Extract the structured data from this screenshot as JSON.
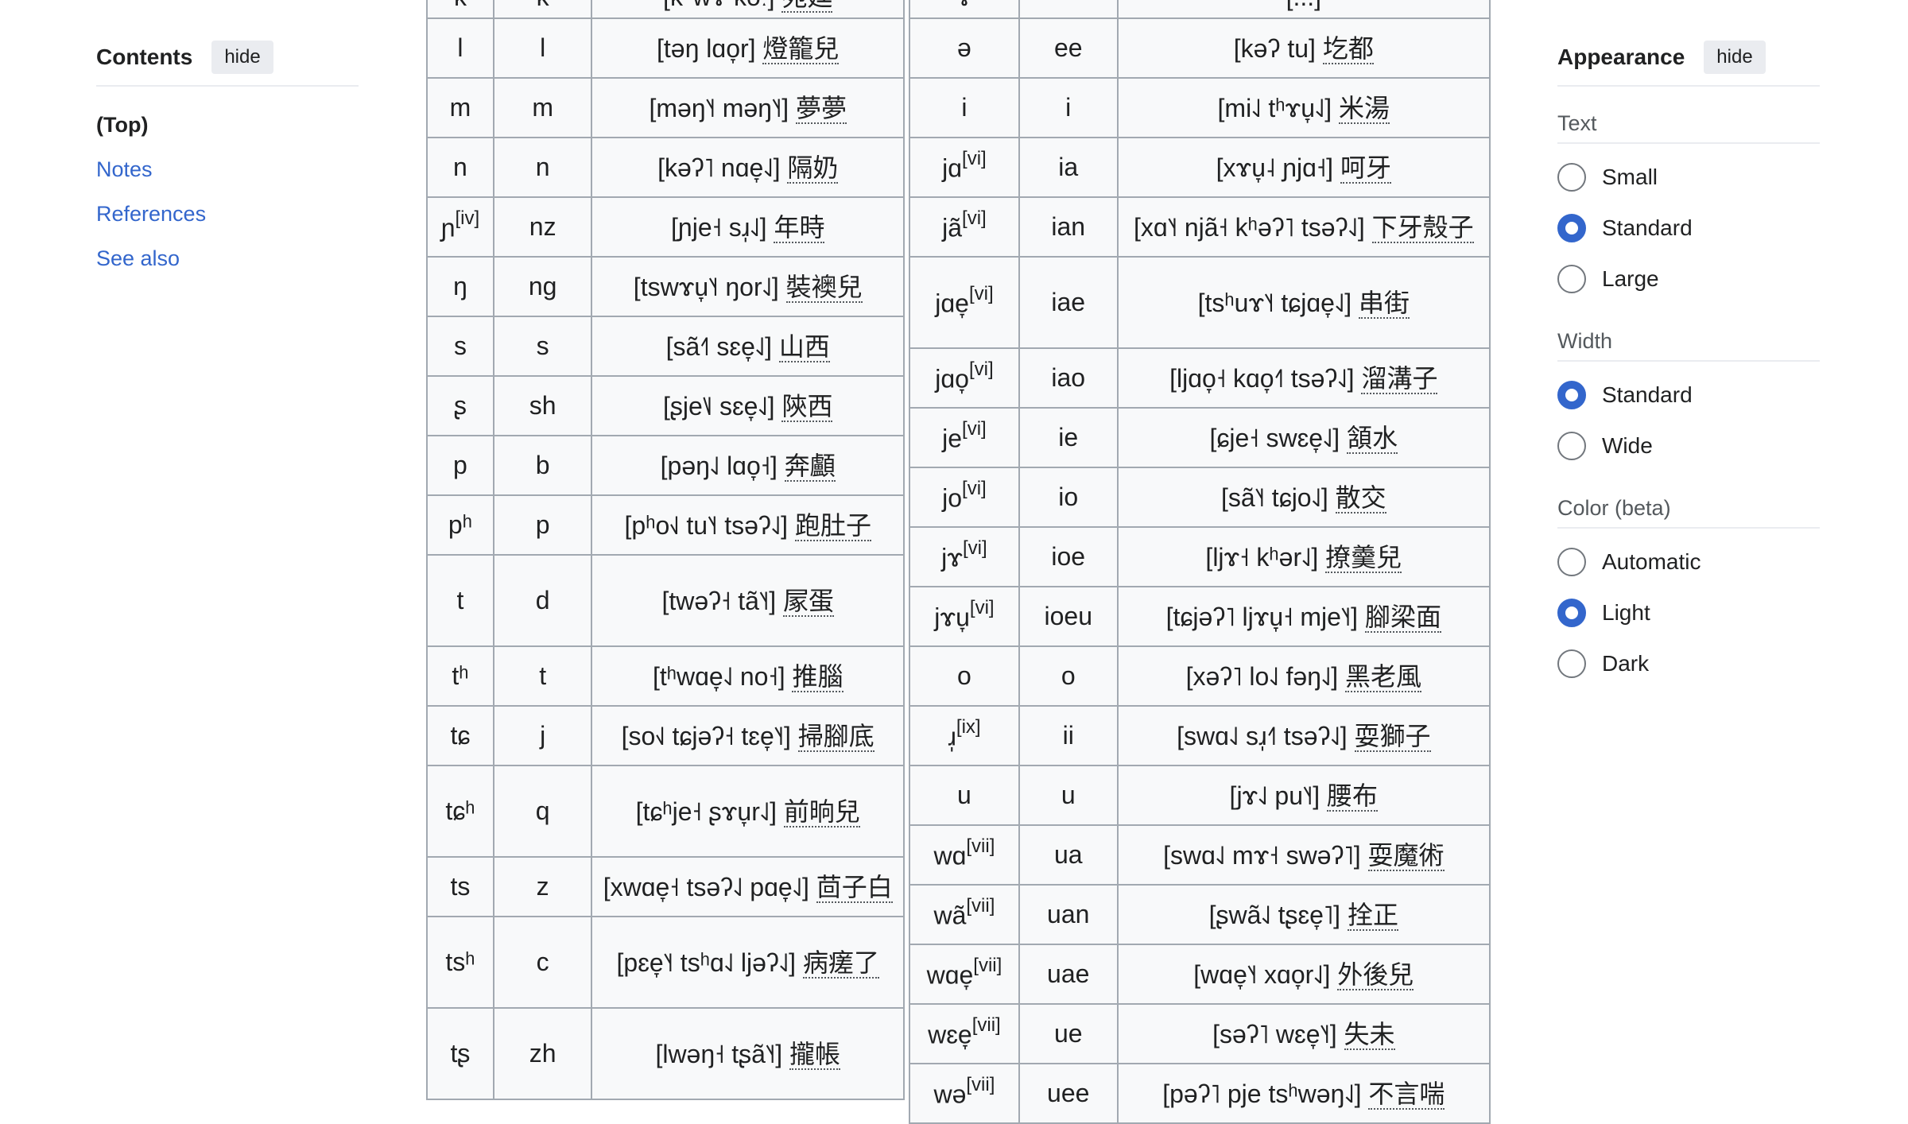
{
  "toc": {
    "title": "Contents",
    "hide_label": "hide",
    "items": [
      "(Top)",
      "Notes",
      "References",
      "See also"
    ]
  },
  "table_left": {
    "rows": [
      {
        "ipa": "k",
        "sup": "",
        "rom": "k",
        "ex": "[kʰw̃ɤ kə̃ː] 苑廷"
      },
      {
        "ipa": "l",
        "sup": "",
        "rom": "l",
        "ex": "[təŋ lɑo̞r] 燈籠兒"
      },
      {
        "ipa": "m",
        "sup": "",
        "rom": "m",
        "ex": "[məŋ˥˧ məŋ˥˧] 夢夢"
      },
      {
        "ipa": "n",
        "sup": "",
        "rom": "n",
        "ex": "[kəʔ˥ nɑe̞˨˩] 隔奶"
      },
      {
        "ipa": "ɲ",
        "sup": "[iv]",
        "rom": "nz",
        "ex": "[ɲje˧ sɹ̩˨˩] 年時"
      },
      {
        "ipa": "ŋ",
        "sup": "",
        "rom": "ng",
        "ex": "[tswɤu̞˥˧ ŋor˨˩] 裝襖兒"
      },
      {
        "ipa": "s",
        "sup": "",
        "rom": "s",
        "ex": "[sã˧˥ sɛe̞˨˩] 山西"
      },
      {
        "ipa": "ʂ",
        "sup": "",
        "rom": "sh",
        "ex": "[ʂje˥˩ sɛe̞˨˩] 陝西"
      },
      {
        "ipa": "p",
        "sup": "",
        "rom": "b",
        "ex": "[pəŋ˨˩ lɑo̞˧] 奔顱"
      },
      {
        "ipa": "pʰ",
        "sup": "",
        "rom": "p",
        "ex": "[pʰo˧˩ tu˥˧ tsəʔ˨˩] 跑肚子"
      },
      {
        "ipa": "t",
        "sup": "",
        "rom": "d",
        "ex": "[twəʔ˧ tã˥˧] 㞘蛋"
      },
      {
        "ipa": "tʰ",
        "sup": "",
        "rom": "t",
        "ex": "[tʰwɑe̞˨˩ no˧] 推腦"
      },
      {
        "ipa": "tɕ",
        "sup": "",
        "rom": "j",
        "ex": "[so˧˩ tɕjəʔ˧ tɛe̞˥˧] 掃腳底"
      },
      {
        "ipa": "tɕʰ",
        "sup": "",
        "rom": "q",
        "ex": "[tɕʰje˧ ʂɤu̞r˨˩] 前晌兒"
      },
      {
        "ipa": "ts",
        "sup": "",
        "rom": "z",
        "ex": "[xwɑe̞˧ tsəʔ˨˩ pɑe̞˨˩] 茴子白"
      },
      {
        "ipa": "tsʰ",
        "sup": "",
        "rom": "c",
        "ex": "[pɛe̞˥˧ tsʰɑ˨˩ ljəʔ˨˩] 病瘥了"
      },
      {
        "ipa": "tʂ",
        "sup": "",
        "rom": "zh",
        "ex": "[lwəŋ˧ tʂã˥˧] 攏帳"
      }
    ]
  },
  "table_right": {
    "rows": [
      {
        "ipa": "ɤ",
        "sup": "",
        "rom": "",
        "ex": "[...]"
      },
      {
        "ipa": "ə",
        "sup": "",
        "rom": "ee",
        "ex": "[kəʔ tu] 圪都"
      },
      {
        "ipa": "i",
        "sup": "",
        "rom": "i",
        "ex": "[mi˨˩ tʰɤu̞˨˩] 米湯"
      },
      {
        "ipa": "jɑ",
        "sup": "[vi]",
        "rom": "ia",
        "ex": "[xɤu̞˨ ɲjɑ˧] 呵牙"
      },
      {
        "ipa": "jã",
        "sup": "[vi]",
        "rom": "ian",
        "ex": "[xɑ˥˧ njã˧ kʰəʔ˥ tsəʔ˨˩] 下牙殼子"
      },
      {
        "ipa": "jɑe̞",
        "sup": "[vi]",
        "rom": "iae",
        "ex": "[tsʰuɤ˥˧ tɕjɑe̞˨˩] 串街"
      },
      {
        "ipa": "jɑo̞",
        "sup": "[vi]",
        "rom": "iao",
        "ex": "[ljɑo̞˧ kɑo̞˧˥ tsəʔ˨˩] 溜溝子"
      },
      {
        "ipa": "je",
        "sup": "[vi]",
        "rom": "ie",
        "ex": "[ɕje˧ swɛe̞˨˩] 頷水"
      },
      {
        "ipa": "jo",
        "sup": "[vi]",
        "rom": "io",
        "ex": "[sã˥˧ tɕjo˨˩] 散交"
      },
      {
        "ipa": "jɤ",
        "sup": "[vi]",
        "rom": "ioe",
        "ex": "[ljɤ˧ kʰər˨˩] 撩羹兒"
      },
      {
        "ipa": "jɤu̞",
        "sup": "[vi]",
        "rom": "ioeu",
        "ex": "[tɕjəʔ˥ ljɤu̞˧ mje˥˧] 腳梁面"
      },
      {
        "ipa": "o",
        "sup": "",
        "rom": "o",
        "ex": "[xəʔ˥ lo˨˩ fəŋ˨˩] 黑老風"
      },
      {
        "ipa": "ɹ̩",
        "sup": "[ix]",
        "rom": "ii",
        "ex": "[swɑ˨˩ sɹ̩˧˥ tsəʔ˨˩] 耍獅子"
      },
      {
        "ipa": "u",
        "sup": "",
        "rom": "u",
        "ex": "[jɤ˨˩ pu˥˧] 腰布"
      },
      {
        "ipa": "wɑ",
        "sup": "[vii]",
        "rom": "ua",
        "ex": "[swɑ˨˩ mɤ˧ swəʔ˥] 耍魔術"
      },
      {
        "ipa": "wã",
        "sup": "[vii]",
        "rom": "uan",
        "ex": "[ʂwã˨˩ tʂɛe̞˥] 拴正"
      },
      {
        "ipa": "wɑe̞",
        "sup": "[vii]",
        "rom": "uae",
        "ex": "[wɑe̞˥˧ xɑo̞r˨˩] 外後兒"
      },
      {
        "ipa": "wɛe̞",
        "sup": "[vii]",
        "rom": "ue",
        "ex": "[səʔ˥ wɛe̞˥˧] 失未"
      },
      {
        "ipa": "wə",
        "sup": "[vii]",
        "rom": "uee",
        "ex": "[pəʔ˥ pje tsʰwəŋ˨˩] 不言喘"
      }
    ]
  },
  "appearance": {
    "title": "Appearance",
    "hide_label": "hide",
    "text": {
      "label": "Text",
      "options": [
        "Small",
        "Standard",
        "Large"
      ],
      "selected": "Standard"
    },
    "width": {
      "label": "Width",
      "options": [
        "Standard",
        "Wide"
      ],
      "selected": "Standard"
    },
    "color": {
      "label": "Color (beta)",
      "options": [
        "Automatic",
        "Light",
        "Dark"
      ],
      "selected": "Light"
    }
  },
  "colors": {
    "link": "#3366cc",
    "border": "#a2a9b1",
    "table_bg": "#f8f9fa",
    "radio_on": "#3366cc"
  }
}
